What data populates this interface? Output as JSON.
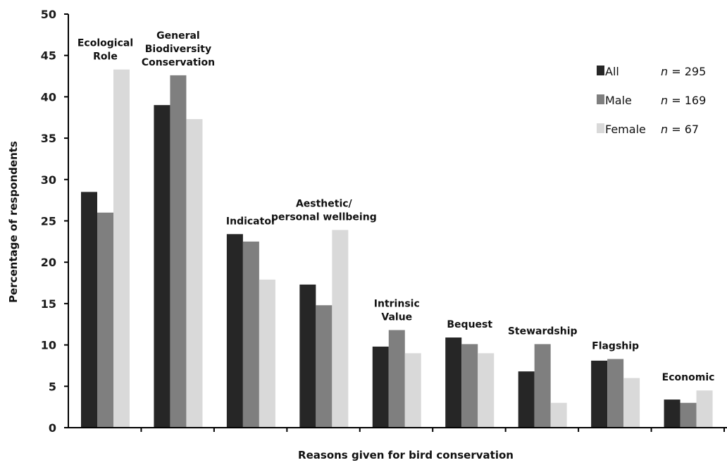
{
  "chart_data": {
    "type": "bar",
    "title": "",
    "xlabel": "Reasons given for bird conservation",
    "ylabel": "Percentage of respondents",
    "ylim": [
      0,
      50
    ],
    "yticks": [
      0,
      5,
      10,
      15,
      20,
      25,
      30,
      35,
      40,
      45,
      50
    ],
    "grid": false,
    "legend_position": "top-right",
    "categories": [
      [
        "Ecological",
        "Role"
      ],
      [
        "General",
        "Biodiversity",
        "Conservation"
      ],
      [
        "Indicator"
      ],
      [
        "Aesthetic/",
        "personal wellbeing"
      ],
      [
        "Intrinsic",
        "Value"
      ],
      [
        "Bequest"
      ],
      [
        "Stewardship"
      ],
      [
        "Flagship"
      ],
      [
        "Economic"
      ]
    ],
    "series": [
      {
        "name": "All",
        "n_label": "n",
        "n_value": "= 295",
        "color": "#262626",
        "values": [
          28.5,
          39.0,
          23.4,
          17.3,
          9.8,
          10.9,
          6.8,
          8.1,
          3.4
        ]
      },
      {
        "name": "Male",
        "n_label": "n",
        "n_value": "= 169",
        "color": "#7f7f7f",
        "values": [
          26.0,
          42.6,
          22.5,
          14.8,
          11.8,
          10.1,
          10.1,
          8.3,
          3.0
        ]
      },
      {
        "name": "Female",
        "n_label": "n",
        "n_value": "= 67",
        "color": "#d9d9d9",
        "values": [
          43.3,
          37.3,
          17.9,
          23.9,
          9.0,
          9.0,
          3.0,
          6.0,
          4.5
        ]
      }
    ]
  }
}
